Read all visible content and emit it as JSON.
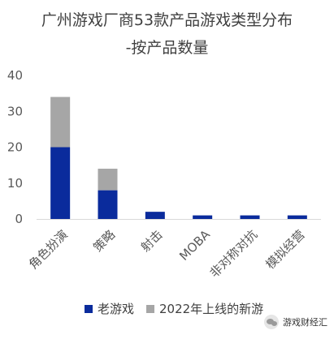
{
  "chart_data": {
    "type": "bar",
    "stacked": true,
    "title_lines": [
      "广州游戏厂商53款产品游戏类型分布",
      "-按产品数量"
    ],
    "categories": [
      "角色扮演",
      "策略",
      "射击",
      "MOBA",
      "非对称对抗",
      "模拟经营"
    ],
    "series": [
      {
        "name": "老游戏",
        "color": "#0a2b9c",
        "values": [
          20,
          8,
          2,
          1,
          1,
          1
        ]
      },
      {
        "name": "2022年上线的新游",
        "color": "#a6a6a6",
        "values": [
          14,
          6,
          0,
          0,
          0,
          0
        ]
      }
    ],
    "yticks": [
      0,
      10,
      20,
      30,
      40
    ],
    "ylim": [
      0,
      40
    ],
    "grid": false,
    "legend_position": "bottom"
  },
  "watermark": {
    "text": "游戏财经汇",
    "icon": "wechat-icon"
  }
}
